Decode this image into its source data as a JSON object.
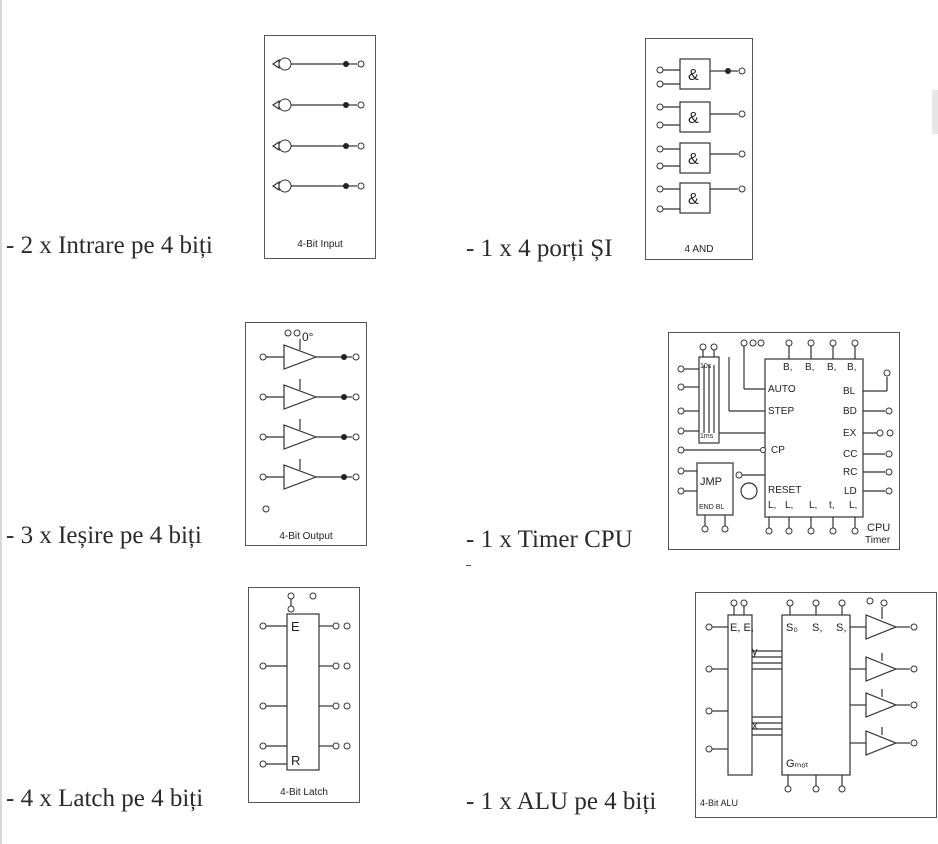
{
  "modules": {
    "input": {
      "caption": "- 2 x Intrare pe 4 biți",
      "label": "4-Bit Input"
    },
    "and": {
      "caption": "- 1 x 4 porți ȘI",
      "label": "4 AND",
      "gate_symbol": "&"
    },
    "output": {
      "caption": "- 3 x Ieșire pe 4 biți",
      "label": "4-Bit Output",
      "top_marker": "0°"
    },
    "timer": {
      "caption": "- 1 x Timer CPU",
      "label_line1": "CPU",
      "label_line2": "Timer",
      "counter_top": "10s",
      "counter_bottom": "1ms",
      "left_labels": [
        "AUTO",
        "STEP",
        "CP",
        "RESET"
      ],
      "top_labels": [
        "B,",
        "B,",
        "B,",
        "B,"
      ],
      "bottom_labels": [
        "L,",
        "L,",
        "L,",
        "t,",
        "L,"
      ],
      "right_labels": [
        "BL",
        "BD",
        "EX",
        "CC",
        "RC",
        "LD"
      ],
      "jmp_label": "JMP",
      "jmp_bottom": "END  BL"
    },
    "latch": {
      "caption": "- 4 x Latch pe 4 biți",
      "label": "4-Bit Latch",
      "enable": "E",
      "reset": "R"
    },
    "alu": {
      "caption": "- 1 x ALU pe 4 biți",
      "label": "4-Bit ALU",
      "reg_top": "E,  E,",
      "y_label": "y",
      "x_label": "x",
      "sel_labels": [
        "S₀",
        "S,",
        "S,"
      ],
      "g_label": "Gₘₒₜ"
    }
  }
}
